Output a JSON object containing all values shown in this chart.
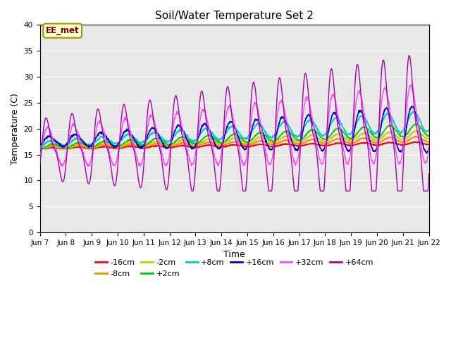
{
  "title": "Soil/Water Temperature Set 2",
  "xlabel": "Time",
  "ylabel": "Temperature (C)",
  "xlim": [
    0,
    15
  ],
  "ylim": [
    0,
    40
  ],
  "yticks": [
    0,
    5,
    10,
    15,
    20,
    25,
    30,
    35,
    40
  ],
  "xtick_labels": [
    "Jun 7",
    "Jun 8",
    "Jun 9",
    "Jun 10",
    "Jun 11",
    "Jun 12",
    "Jun 13",
    "Jun 14",
    "Jun 15",
    "Jun 16",
    "Jun 17",
    "Jun 18",
    "Jun 19",
    "Jun 20",
    "Jun 21",
    "Jun 22"
  ],
  "background_color": "#e8e8e8",
  "plot_bg_color": "#e8e8e8",
  "annotation_text": "EE_met",
  "annotation_bg": "#ffffcc",
  "annotation_border": "#999900",
  "annotation_text_color": "#800000",
  "series_colors": {
    "-16cm": "#ff0000",
    "-8cm": "#ff8800",
    "-2cm": "#cccc00",
    "+2cm": "#00cc00",
    "+8cm": "#00cccc",
    "+16cm": "#0000cc",
    "+32cm": "#ff44ff",
    "+64cm": "#aa00aa"
  },
  "legend_entries": [
    "-16cm",
    "-8cm",
    "-2cm",
    "+2cm",
    "+8cm",
    "+16cm",
    "+32cm",
    "+64cm"
  ]
}
